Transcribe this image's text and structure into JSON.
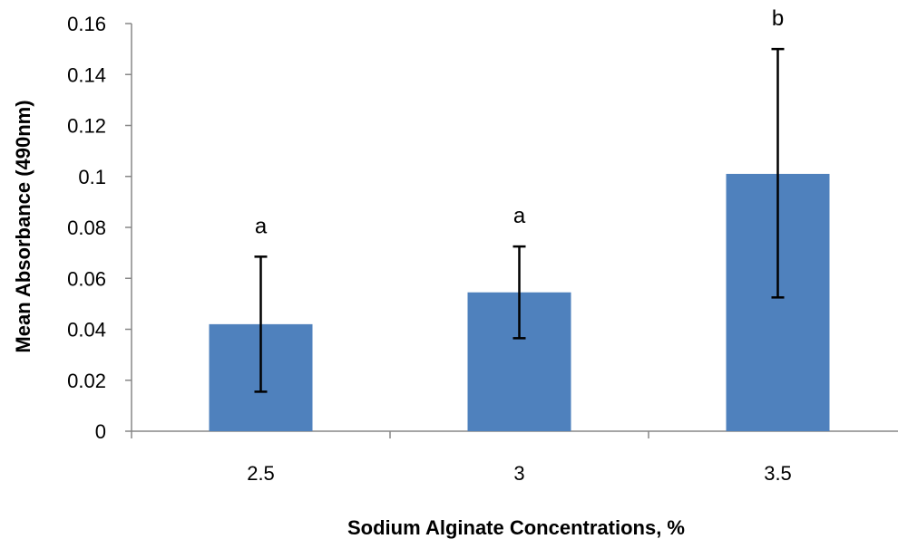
{
  "chart_data": {
    "type": "bar",
    "categories": [
      "2.5",
      "3",
      "3.5"
    ],
    "values": [
      0.042,
      0.0545,
      0.101
    ],
    "error_low": [
      0.0155,
      0.0365,
      0.0525
    ],
    "error_high": [
      0.0685,
      0.0725,
      0.15
    ],
    "annotations": [
      "a",
      "a",
      "b"
    ],
    "xlabel": "Sodium Alginate Concentrations, %",
    "ylabel": "Mean Absorbance (490nm)",
    "ylim": [
      0,
      0.16
    ],
    "yticks": [
      "0",
      "0.02",
      "0.04",
      "0.06",
      "0.08",
      "0.1",
      "0.12",
      "0.14",
      "0.16"
    ],
    "grid": false,
    "legend": "none",
    "bar_color": "#4f81bd",
    "axis_color": "#878787",
    "error_bar_color": "#000000"
  }
}
